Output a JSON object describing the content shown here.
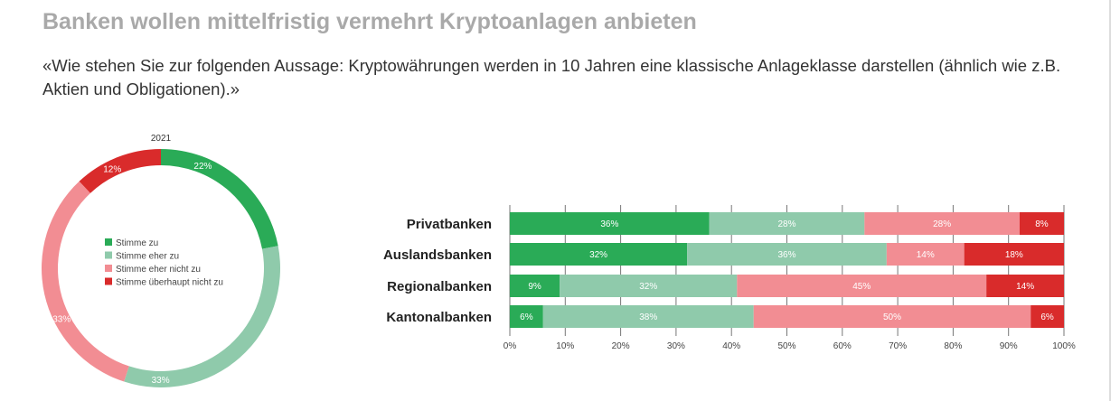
{
  "title": "Banken wollen mittelfristig vermehrt Kryptoanlagen anbieten",
  "subtitle": "«Wie stehen Sie zur folgenden Aussage: Kryptowährungen werden in 10 Jahren eine klassische Anlageklasse darstellen (ähnlich wie z.B. Aktien und Obligationen).»",
  "colors": [
    "#2aab57",
    "#8fcaab",
    "#f28d93",
    "#d92b2b"
  ],
  "chart_data": [
    {
      "type": "pie",
      "title": "2021",
      "donut": true,
      "categories": [
        "Stimme zu",
        "Stimme eher zu",
        "Stimme eher nicht zu",
        "Stimme überhaupt nicht zu"
      ],
      "values": [
        22,
        33,
        33,
        12
      ],
      "labels": [
        "22%",
        "33%",
        "33%",
        "12%"
      ],
      "legend": "center"
    },
    {
      "type": "bar",
      "orientation": "horizontal",
      "stacked": true,
      "categories": [
        "Privatbanken",
        "Auslandsbanken",
        "Regionalbanken",
        "Kantonalbanken"
      ],
      "series": [
        {
          "name": "Stimme zu",
          "values": [
            36,
            32,
            9,
            6
          ]
        },
        {
          "name": "Stimme eher zu",
          "values": [
            28,
            36,
            32,
            38
          ]
        },
        {
          "name": "Stimme eher nicht zu",
          "values": [
            28,
            14,
            45,
            50
          ]
        },
        {
          "name": "Stimme überhaupt nicht zu",
          "values": [
            8,
            18,
            14,
            6
          ]
        }
      ],
      "xlim": [
        0,
        100
      ],
      "xticks": [
        "0%",
        "10%",
        "20%",
        "30%",
        "40%",
        "50%",
        "60%",
        "70%",
        "80%",
        "90%",
        "100%"
      ],
      "grid": true
    }
  ]
}
